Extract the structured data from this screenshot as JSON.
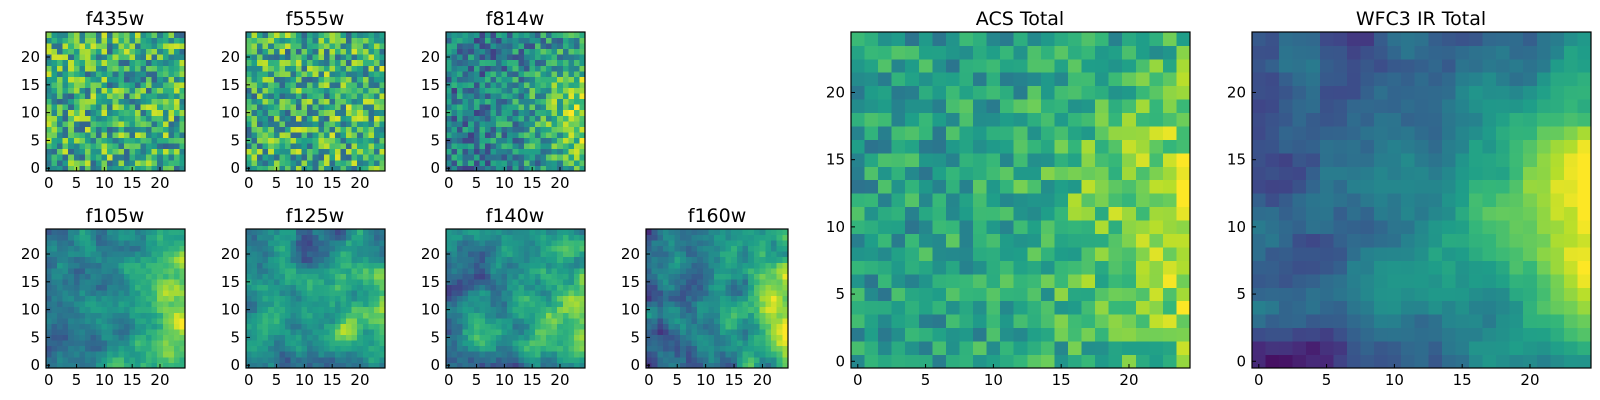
{
  "figure": {
    "colormap": "viridis",
    "colormap_stops": [
      "#440154",
      "#482878",
      "#3e4989",
      "#31688e",
      "#26828e",
      "#1f9e89",
      "#35b779",
      "#6ece58",
      "#b5de2b",
      "#fde725"
    ]
  },
  "chart_data": [
    {
      "id": "f435w",
      "type": "heatmap",
      "title": "f435w",
      "grid_size": 25,
      "xlim": [
        0,
        24
      ],
      "ylim": [
        0,
        24
      ],
      "xticks": [
        0,
        5,
        10,
        15,
        20
      ],
      "yticks": [
        0,
        5,
        10,
        15,
        20
      ],
      "texture": "noise",
      "noise_level": 0.45,
      "base_level": 0.62,
      "gradient": 0.0,
      "seed": 11
    },
    {
      "id": "f555w",
      "type": "heatmap",
      "title": "f555w",
      "grid_size": 25,
      "xlim": [
        0,
        24
      ],
      "ylim": [
        0,
        24
      ],
      "xticks": [
        0,
        5,
        10,
        15,
        20
      ],
      "yticks": [
        0,
        5,
        10,
        15,
        20
      ],
      "texture": "noise",
      "noise_level": 0.45,
      "base_level": 0.62,
      "gradient": 0.05,
      "seed": 23
    },
    {
      "id": "f814w",
      "type": "heatmap",
      "title": "f814w",
      "grid_size": 25,
      "xlim": [
        0,
        24
      ],
      "ylim": [
        0,
        24
      ],
      "xticks": [
        0,
        5,
        10,
        15,
        20
      ],
      "yticks": [
        0,
        5,
        10,
        15,
        20
      ],
      "texture": "noise",
      "noise_level": 0.35,
      "base_level": 0.42,
      "gradient": 0.45,
      "seed": 37
    },
    {
      "id": "f105w",
      "type": "heatmap",
      "title": "f105w",
      "grid_size": 25,
      "xlim": [
        0,
        24
      ],
      "ylim": [
        0,
        24
      ],
      "xticks": [
        0,
        5,
        10,
        15,
        20
      ],
      "yticks": [
        0,
        5,
        10,
        15,
        20
      ],
      "texture": "smooth",
      "noise_level": 0.3,
      "base_level": 0.42,
      "gradient": 0.45,
      "seed": 41
    },
    {
      "id": "f125w",
      "type": "heatmap",
      "title": "f125w",
      "grid_size": 25,
      "xlim": [
        0,
        24
      ],
      "ylim": [
        0,
        24
      ],
      "xticks": [
        0,
        5,
        10,
        15,
        20
      ],
      "yticks": [
        0,
        5,
        10,
        15,
        20
      ],
      "texture": "smooth",
      "noise_level": 0.33,
      "base_level": 0.45,
      "gradient": 0.4,
      "seed": 53
    },
    {
      "id": "f140w",
      "type": "heatmap",
      "title": "f140w",
      "grid_size": 25,
      "xlim": [
        0,
        24
      ],
      "ylim": [
        0,
        24
      ],
      "xticks": [
        0,
        5,
        10,
        15,
        20
      ],
      "yticks": [
        0,
        5,
        10,
        15,
        20
      ],
      "texture": "smooth",
      "noise_level": 0.35,
      "base_level": 0.45,
      "gradient": 0.4,
      "seed": 67
    },
    {
      "id": "f160w",
      "type": "heatmap",
      "title": "f160w",
      "grid_size": 25,
      "xlim": [
        0,
        24
      ],
      "ylim": [
        0,
        24
      ],
      "xticks": [
        0,
        5,
        10,
        15,
        20
      ],
      "yticks": [
        0,
        5,
        10,
        15,
        20
      ],
      "texture": "smooth",
      "noise_level": 0.35,
      "base_level": 0.4,
      "gradient": 0.5,
      "seed": 79
    },
    {
      "id": "acs-total",
      "type": "heatmap",
      "title": "ACS Total",
      "grid_size": 25,
      "xlim": [
        0,
        24
      ],
      "ylim": [
        0,
        24
      ],
      "xticks": [
        0,
        5,
        10,
        15,
        20
      ],
      "yticks": [
        0,
        5,
        10,
        15,
        20
      ],
      "texture": "noise",
      "noise_level": 0.25,
      "base_level": 0.55,
      "gradient": 0.4,
      "seed": 83
    },
    {
      "id": "wfc3-ir-total",
      "type": "heatmap",
      "title": "WFC3 IR Total",
      "grid_size": 25,
      "xlim": [
        0,
        24
      ],
      "ylim": [
        0,
        24
      ],
      "xticks": [
        0,
        5,
        10,
        15,
        20
      ],
      "yticks": [
        0,
        5,
        10,
        15,
        20
      ],
      "texture": "smooth",
      "noise_level": 0.22,
      "base_level": 0.3,
      "gradient": 0.65,
      "seed": 97
    }
  ]
}
